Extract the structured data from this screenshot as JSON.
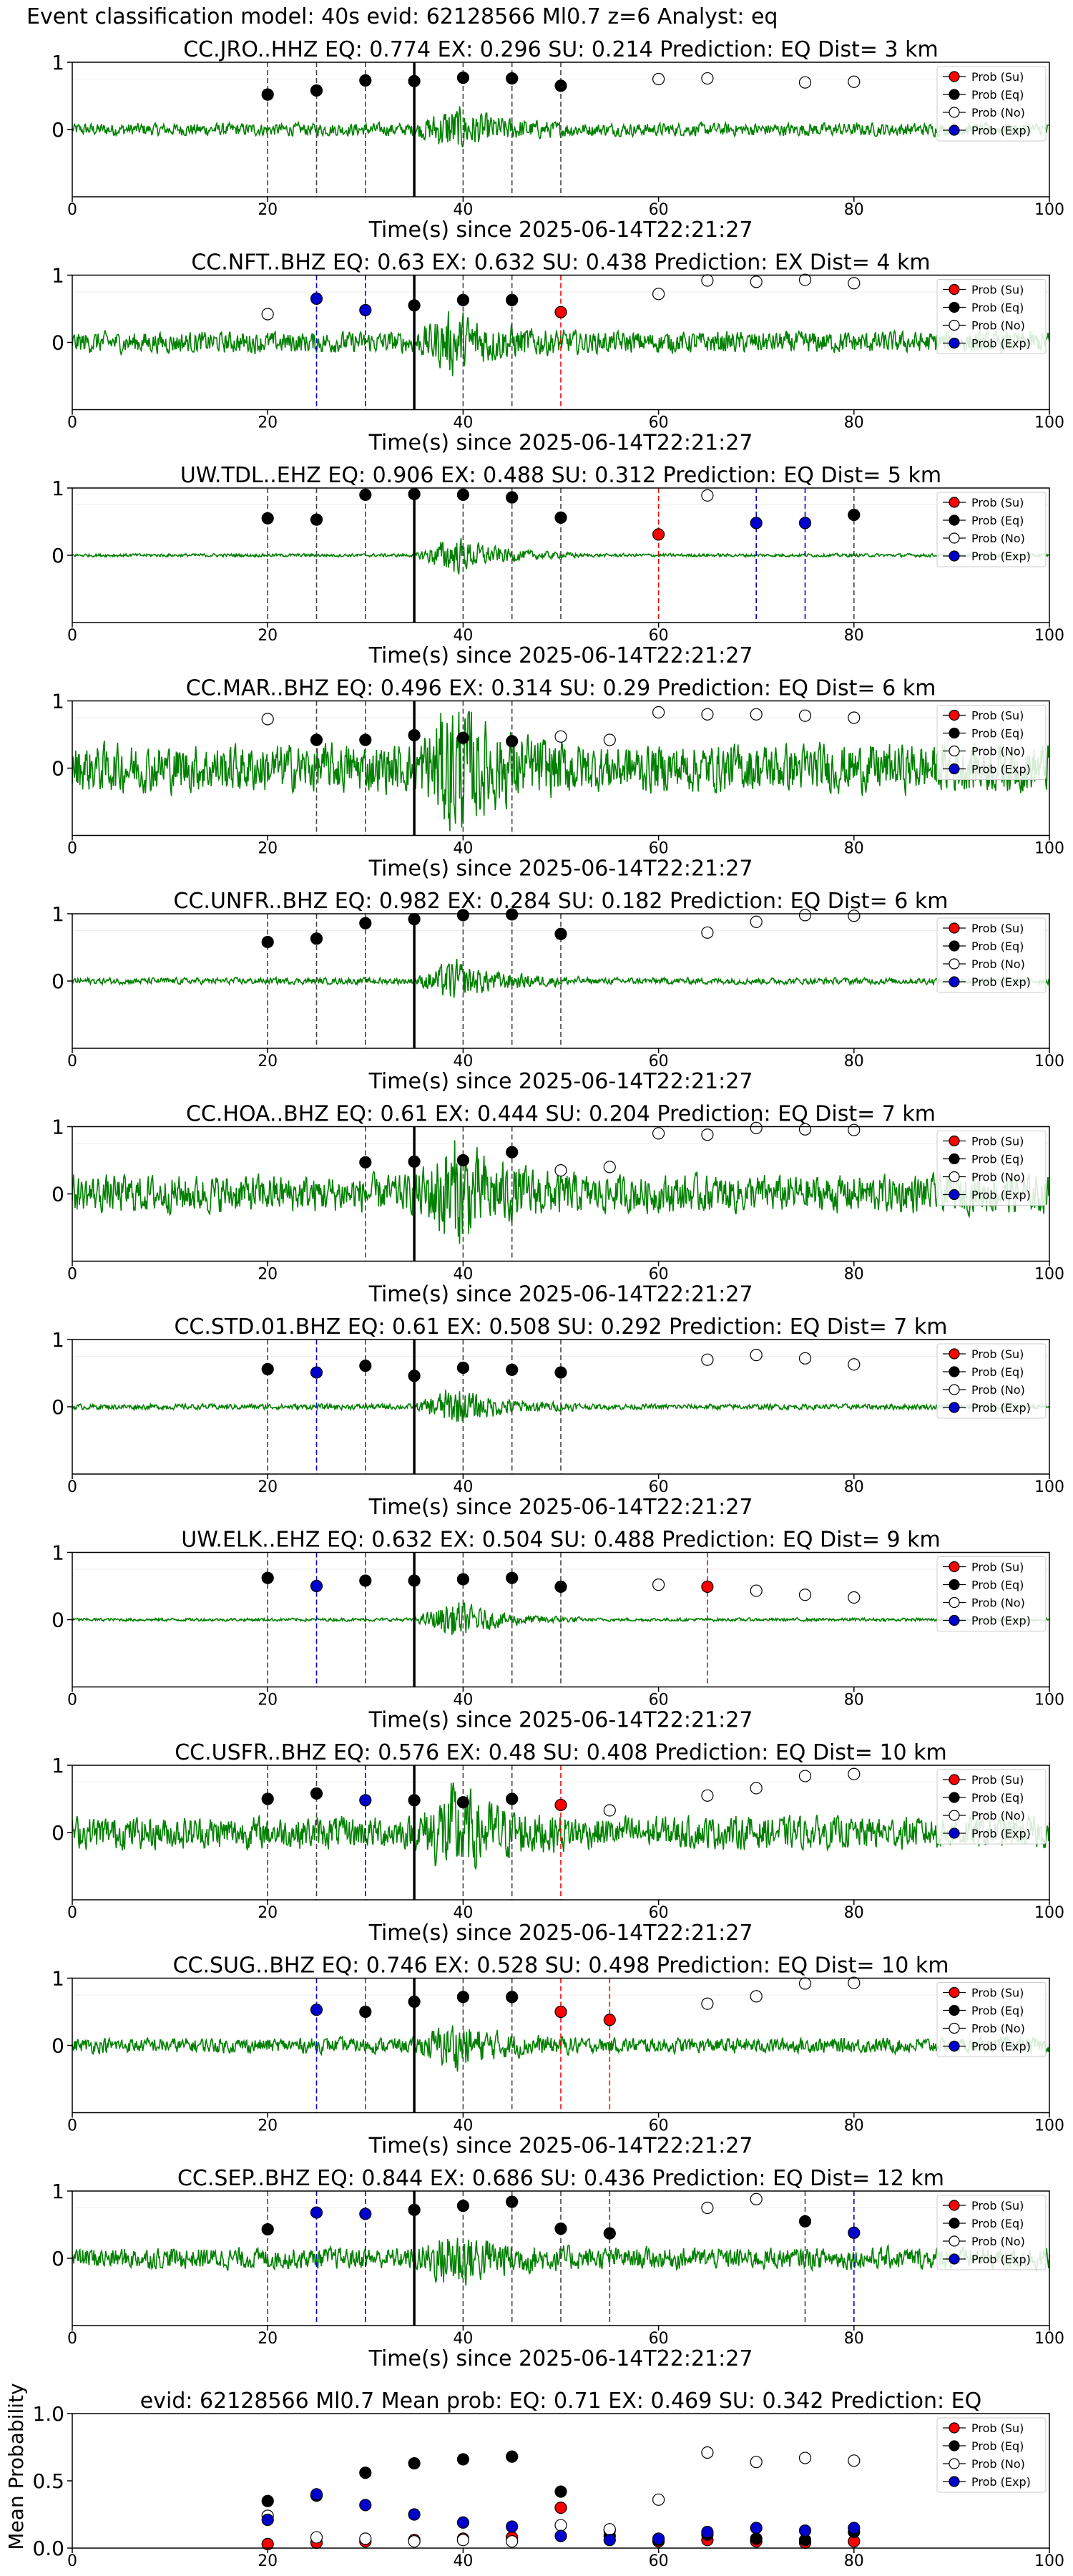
{
  "suptitle": "Event classification model: 40s evid: 62128566 Ml0.7 z=6 Analyst: eq",
  "colors": {
    "wave": "#008000",
    "su": "#ff0000",
    "eq": "#000000",
    "no": "#ffffff",
    "exp": "#0000cc"
  },
  "legend": [
    "Prob (Su)",
    "Prob (Eq)",
    "Prob (No)",
    "Prob (Exp)"
  ],
  "xlabel": "Time(s) since 2025-06-14T22:21:27",
  "xticks": [
    "0",
    "20",
    "40",
    "60",
    "80",
    "100"
  ],
  "yticks": [
    "0",
    "1"
  ],
  "chart_data": [
    {
      "type": "scatter",
      "title": "CC.JRO..HHZ   EQ: 0.774  EX: 0.296  SU: 0.214   Prediction: EQ    Dist= 3 km",
      "xlim": [
        0,
        100
      ],
      "ylim": [
        -1,
        1
      ],
      "legend_position": "top-right",
      "amplitude": 0.12,
      "vlines": [
        [
          20,
          "eq"
        ],
        [
          25,
          "eq"
        ],
        [
          30,
          "eq"
        ],
        [
          40,
          "eq"
        ],
        [
          45,
          "eq"
        ],
        [
          50,
          "eq"
        ]
      ],
      "points": [
        [
          20,
          0.52,
          "eq"
        ],
        [
          25,
          0.58,
          "eq"
        ],
        [
          30,
          0.73,
          "eq"
        ],
        [
          35,
          0.72,
          "eq"
        ],
        [
          40,
          0.77,
          "eq"
        ],
        [
          45,
          0.76,
          "eq"
        ],
        [
          50,
          0.65,
          "eq"
        ],
        [
          60,
          0.75,
          "no"
        ],
        [
          65,
          0.76,
          "no"
        ],
        [
          75,
          0.7,
          "no"
        ],
        [
          80,
          0.71,
          "no"
        ]
      ]
    },
    {
      "type": "scatter",
      "title": "CC.NFT..BHZ   EQ: 0.63  EX: 0.632  SU: 0.438   Prediction: EX    Dist= 4 km",
      "xlim": [
        0,
        100
      ],
      "ylim": [
        -1,
        1
      ],
      "legend_position": "top-right",
      "amplitude": 0.2,
      "vlines": [
        [
          25,
          "exp"
        ],
        [
          30,
          "exp"
        ],
        [
          40,
          "eq"
        ],
        [
          45,
          "eq"
        ],
        [
          50,
          "su"
        ]
      ],
      "points": [
        [
          20,
          0.42,
          "no"
        ],
        [
          25,
          0.65,
          "exp"
        ],
        [
          30,
          0.48,
          "exp"
        ],
        [
          35,
          0.55,
          "eq"
        ],
        [
          40,
          0.63,
          "eq"
        ],
        [
          45,
          0.63,
          "eq"
        ],
        [
          50,
          0.45,
          "su"
        ],
        [
          60,
          0.72,
          "no"
        ],
        [
          65,
          0.92,
          "no"
        ],
        [
          70,
          0.9,
          "no"
        ],
        [
          75,
          0.93,
          "no"
        ],
        [
          80,
          0.88,
          "no"
        ]
      ]
    },
    {
      "type": "scatter",
      "title": "UW.TDL..EHZ   EQ: 0.906  EX: 0.488  SU: 0.312   Prediction: EQ    Dist= 5 km",
      "xlim": [
        0,
        100
      ],
      "ylim": [
        -1,
        1
      ],
      "legend_position": "top-right",
      "amplitude": 0.03,
      "vlines": [
        [
          20,
          "eq"
        ],
        [
          25,
          "eq"
        ],
        [
          30,
          "eq"
        ],
        [
          40,
          "eq"
        ],
        [
          45,
          "eq"
        ],
        [
          50,
          "eq"
        ],
        [
          60,
          "su"
        ],
        [
          70,
          "exp"
        ],
        [
          75,
          "exp"
        ],
        [
          80,
          "eq"
        ]
      ],
      "points": [
        [
          20,
          0.55,
          "eq"
        ],
        [
          25,
          0.53,
          "eq"
        ],
        [
          30,
          0.9,
          "eq"
        ],
        [
          35,
          0.91,
          "eq"
        ],
        [
          40,
          0.9,
          "eq"
        ],
        [
          45,
          0.86,
          "eq"
        ],
        [
          50,
          0.56,
          "eq"
        ],
        [
          60,
          0.31,
          "su"
        ],
        [
          65,
          0.89,
          "no"
        ],
        [
          70,
          0.48,
          "exp"
        ],
        [
          75,
          0.48,
          "exp"
        ],
        [
          80,
          0.6,
          "eq"
        ]
      ]
    },
    {
      "type": "scatter",
      "title": "CC.MAR..BHZ   EQ: 0.496  EX: 0.314  SU: 0.29   Prediction: EQ    Dist= 6 km",
      "xlim": [
        0,
        100
      ],
      "ylim": [
        -1,
        1
      ],
      "legend_position": "top-right",
      "amplitude": 0.45,
      "vlines": [
        [
          25,
          "eq"
        ],
        [
          30,
          "eq"
        ],
        [
          40,
          "eq"
        ],
        [
          45,
          "eq"
        ]
      ],
      "points": [
        [
          20,
          0.73,
          "no"
        ],
        [
          25,
          0.42,
          "eq"
        ],
        [
          30,
          0.42,
          "eq"
        ],
        [
          35,
          0.49,
          "eq"
        ],
        [
          40,
          0.45,
          "eq"
        ],
        [
          45,
          0.4,
          "eq"
        ],
        [
          50,
          0.47,
          "no"
        ],
        [
          55,
          0.42,
          "no"
        ],
        [
          60,
          0.83,
          "no"
        ],
        [
          65,
          0.8,
          "no"
        ],
        [
          70,
          0.8,
          "no"
        ],
        [
          75,
          0.78,
          "no"
        ],
        [
          80,
          0.75,
          "no"
        ]
      ]
    },
    {
      "type": "scatter",
      "title": "CC.UNFR..BHZ   EQ: 0.982  EX: 0.284  SU: 0.182   Prediction: EQ    Dist= 6 km",
      "xlim": [
        0,
        100
      ],
      "ylim": [
        -1,
        1
      ],
      "legend_position": "top-right",
      "amplitude": 0.06,
      "vlines": [
        [
          20,
          "eq"
        ],
        [
          25,
          "eq"
        ],
        [
          30,
          "eq"
        ],
        [
          40,
          "eq"
        ],
        [
          45,
          "eq"
        ],
        [
          50,
          "eq"
        ]
      ],
      "points": [
        [
          20,
          0.58,
          "eq"
        ],
        [
          25,
          0.63,
          "eq"
        ],
        [
          30,
          0.86,
          "eq"
        ],
        [
          35,
          0.92,
          "eq"
        ],
        [
          40,
          0.98,
          "eq"
        ],
        [
          45,
          0.99,
          "eq"
        ],
        [
          50,
          0.7,
          "eq"
        ],
        [
          65,
          0.72,
          "no"
        ],
        [
          70,
          0.88,
          "no"
        ],
        [
          75,
          0.98,
          "no"
        ],
        [
          80,
          0.97,
          "no"
        ]
      ]
    },
    {
      "type": "scatter",
      "title": "CC.HOA..BHZ   EQ: 0.61  EX: 0.444  SU: 0.204   Prediction: EQ    Dist= 7 km",
      "xlim": [
        0,
        100
      ],
      "ylim": [
        -1,
        1
      ],
      "legend_position": "top-right",
      "amplitude": 0.35,
      "vlines": [
        [
          30,
          "eq"
        ],
        [
          40,
          "eq"
        ],
        [
          45,
          "eq"
        ]
      ],
      "points": [
        [
          30,
          0.47,
          "eq"
        ],
        [
          35,
          0.48,
          "eq"
        ],
        [
          40,
          0.5,
          "eq"
        ],
        [
          45,
          0.62,
          "eq"
        ],
        [
          50,
          0.35,
          "no"
        ],
        [
          55,
          0.4,
          "no"
        ],
        [
          60,
          0.9,
          "no"
        ],
        [
          65,
          0.88,
          "no"
        ],
        [
          70,
          0.98,
          "no"
        ],
        [
          75,
          0.96,
          "no"
        ],
        [
          80,
          0.95,
          "no"
        ]
      ]
    },
    {
      "type": "scatter",
      "title": "CC.STD.01.BHZ   EQ: 0.61  EX: 0.508  SU: 0.292   Prediction: EQ    Dist= 7 km",
      "xlim": [
        0,
        100
      ],
      "ylim": [
        -1,
        1
      ],
      "legend_position": "top-right",
      "amplitude": 0.05,
      "vlines": [
        [
          20,
          "eq"
        ],
        [
          25,
          "exp"
        ],
        [
          30,
          "eq"
        ],
        [
          40,
          "eq"
        ],
        [
          45,
          "eq"
        ],
        [
          50,
          "eq"
        ]
      ],
      "points": [
        [
          20,
          0.56,
          "eq"
        ],
        [
          25,
          0.51,
          "exp"
        ],
        [
          30,
          0.61,
          "eq"
        ],
        [
          35,
          0.46,
          "eq"
        ],
        [
          40,
          0.58,
          "eq"
        ],
        [
          45,
          0.55,
          "eq"
        ],
        [
          50,
          0.51,
          "eq"
        ],
        [
          65,
          0.7,
          "no"
        ],
        [
          70,
          0.77,
          "no"
        ],
        [
          75,
          0.72,
          "no"
        ],
        [
          80,
          0.63,
          "no"
        ]
      ]
    },
    {
      "type": "scatter",
      "title": "UW.ELK..EHZ   EQ: 0.632  EX: 0.504  SU: 0.488   Prediction: EQ    Dist= 9 km",
      "xlim": [
        0,
        100
      ],
      "ylim": [
        -1,
        1
      ],
      "legend_position": "top-right",
      "amplitude": 0.03,
      "vlines": [
        [
          20,
          "eq"
        ],
        [
          25,
          "exp"
        ],
        [
          30,
          "eq"
        ],
        [
          40,
          "eq"
        ],
        [
          45,
          "eq"
        ],
        [
          50,
          "eq"
        ],
        [
          65,
          "su"
        ]
      ],
      "points": [
        [
          20,
          0.62,
          "eq"
        ],
        [
          25,
          0.5,
          "exp"
        ],
        [
          30,
          0.58,
          "eq"
        ],
        [
          35,
          0.58,
          "eq"
        ],
        [
          40,
          0.6,
          "eq"
        ],
        [
          45,
          0.62,
          "eq"
        ],
        [
          50,
          0.49,
          "eq"
        ],
        [
          60,
          0.52,
          "no"
        ],
        [
          65,
          0.49,
          "su"
        ],
        [
          70,
          0.43,
          "no"
        ],
        [
          75,
          0.37,
          "no"
        ],
        [
          80,
          0.33,
          "no"
        ]
      ]
    },
    {
      "type": "scatter",
      "title": "CC.USFR..BHZ   EQ: 0.576  EX: 0.48  SU: 0.408   Prediction: EQ    Dist= 10 km",
      "xlim": [
        0,
        100
      ],
      "ylim": [
        -1,
        1
      ],
      "legend_position": "top-right",
      "amplitude": 0.3,
      "vlines": [
        [
          20,
          "eq"
        ],
        [
          25,
          "eq"
        ],
        [
          30,
          "exp"
        ],
        [
          40,
          "eq"
        ],
        [
          45,
          "eq"
        ],
        [
          50,
          "su"
        ]
      ],
      "points": [
        [
          20,
          0.5,
          "eq"
        ],
        [
          25,
          0.58,
          "eq"
        ],
        [
          30,
          0.48,
          "exp"
        ],
        [
          35,
          0.48,
          "eq"
        ],
        [
          40,
          0.45,
          "eq"
        ],
        [
          45,
          0.5,
          "eq"
        ],
        [
          50,
          0.41,
          "su"
        ],
        [
          55,
          0.33,
          "no"
        ],
        [
          65,
          0.55,
          "no"
        ],
        [
          70,
          0.66,
          "no"
        ],
        [
          75,
          0.84,
          "no"
        ],
        [
          80,
          0.87,
          "no"
        ]
      ]
    },
    {
      "type": "scatter",
      "title": "CC.SUG..BHZ   EQ: 0.746  EX: 0.528  SU: 0.498   Prediction: EQ    Dist= 10 km",
      "xlim": [
        0,
        100
      ],
      "ylim": [
        -1,
        1
      ],
      "legend_position": "top-right",
      "amplitude": 0.14,
      "vlines": [
        [
          25,
          "exp"
        ],
        [
          30,
          "eq"
        ],
        [
          40,
          "eq"
        ],
        [
          45,
          "eq"
        ],
        [
          50,
          "su"
        ],
        [
          55,
          "su"
        ]
      ],
      "points": [
        [
          25,
          0.53,
          "exp"
        ],
        [
          30,
          0.5,
          "eq"
        ],
        [
          35,
          0.65,
          "eq"
        ],
        [
          40,
          0.72,
          "eq"
        ],
        [
          45,
          0.72,
          "eq"
        ],
        [
          50,
          0.5,
          "su"
        ],
        [
          55,
          0.38,
          "su"
        ],
        [
          65,
          0.62,
          "no"
        ],
        [
          70,
          0.73,
          "no"
        ],
        [
          75,
          0.92,
          "no"
        ],
        [
          80,
          0.93,
          "no"
        ]
      ]
    },
    {
      "type": "scatter",
      "title": "CC.SEP..BHZ   EQ: 0.844  EX: 0.686  SU: 0.436   Prediction: EQ    Dist= 12 km",
      "xlim": [
        0,
        100
      ],
      "ylim": [
        -1,
        1
      ],
      "legend_position": "top-right",
      "amplitude": 0.2,
      "vlines": [
        [
          20,
          "eq"
        ],
        [
          25,
          "exp"
        ],
        [
          30,
          "exp"
        ],
        [
          40,
          "eq"
        ],
        [
          45,
          "eq"
        ],
        [
          50,
          "eq"
        ],
        [
          55,
          "eq"
        ],
        [
          75,
          "eq"
        ],
        [
          80,
          "exp"
        ]
      ],
      "points": [
        [
          20,
          0.43,
          "eq"
        ],
        [
          25,
          0.68,
          "exp"
        ],
        [
          30,
          0.66,
          "exp"
        ],
        [
          35,
          0.72,
          "eq"
        ],
        [
          40,
          0.78,
          "eq"
        ],
        [
          45,
          0.84,
          "eq"
        ],
        [
          50,
          0.44,
          "eq"
        ],
        [
          55,
          0.37,
          "eq"
        ],
        [
          65,
          0.75,
          "no"
        ],
        [
          70,
          0.88,
          "no"
        ],
        [
          75,
          0.55,
          "eq"
        ],
        [
          80,
          0.38,
          "exp"
        ]
      ]
    },
    {
      "type": "scatter",
      "title": "evid: 62128566  Ml0.7   Mean prob:   EQ: 0.71  EX: 0.469  SU: 0.342   Prediction: EQ",
      "ylabel": "Mean Probability",
      "xlim": [
        0,
        100
      ],
      "ylim": [
        0,
        1
      ],
      "legend_position": "top-right",
      "yticks": [
        "0.0",
        "0.5",
        "1.0"
      ],
      "series": [
        {
          "name": "Prob (Su)",
          "color": "su",
          "x": [
            20,
            25,
            30,
            35,
            40,
            45,
            50,
            55,
            60,
            65,
            70,
            75,
            80
          ],
          "y": [
            0.03,
            0.04,
            0.05,
            0.06,
            0.07,
            0.08,
            0.3,
            0.13,
            0.05,
            0.06,
            0.05,
            0.04,
            0.05
          ]
        },
        {
          "name": "Prob (Eq)",
          "color": "eq",
          "x": [
            20,
            25,
            30,
            35,
            40,
            45,
            50,
            55,
            60,
            65,
            70,
            75,
            80
          ],
          "y": [
            0.35,
            0.39,
            0.56,
            0.63,
            0.66,
            0.68,
            0.42,
            0.09,
            0.06,
            0.1,
            0.07,
            0.06,
            0.12
          ]
        },
        {
          "name": "Prob (No)",
          "color": "no",
          "x": [
            20,
            25,
            30,
            35,
            40,
            45,
            50,
            55,
            60,
            65,
            70,
            75,
            80
          ],
          "y": [
            0.24,
            0.08,
            0.07,
            0.05,
            0.06,
            0.05,
            0.17,
            0.14,
            0.36,
            0.71,
            0.64,
            0.67,
            0.65
          ]
        },
        {
          "name": "Prob (Exp)",
          "color": "exp",
          "x": [
            20,
            25,
            30,
            35,
            40,
            45,
            50,
            55,
            60,
            65,
            70,
            75,
            80
          ],
          "y": [
            0.21,
            0.4,
            0.32,
            0.25,
            0.19,
            0.16,
            0.09,
            0.06,
            0.07,
            0.12,
            0.15,
            0.13,
            0.15
          ]
        }
      ]
    }
  ]
}
